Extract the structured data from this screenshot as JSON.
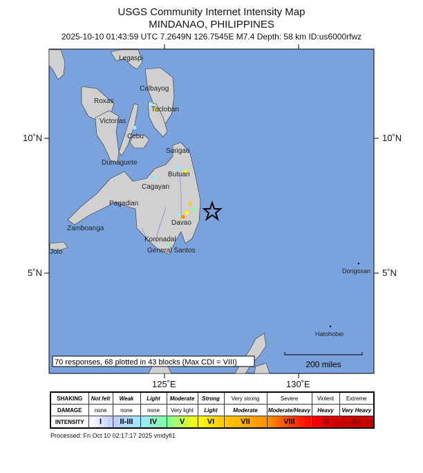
{
  "header": {
    "title": "USGS Community Internet Intensity Map",
    "region": "MINDANAO, PHILIPPINES",
    "event_info": "2025-10-10 01:43:59 UTC 7.2649N 126.7545E M7.4 Depth: 58 km ID:us6000rfwz"
  },
  "map": {
    "ocean_color": "#7aa2dd",
    "land_color": "#d0d0d0",
    "river_color": "#7f88e0",
    "lat_labels": [
      "10˚N",
      "5˚N"
    ],
    "lon_labels": [
      "125˚E",
      "130˚E"
    ],
    "cities": [
      "Legaspi",
      "Calbayog",
      "Roxas",
      "Tacloban",
      "Victorias",
      "Cebu",
      "Surigao",
      "Dumaguete",
      "Butuan",
      "Cagayan",
      "Pagadian",
      "Davao",
      "Zamboanga",
      "Koronadal",
      "General Santos",
      "Jolo",
      "Dongosan",
      "Hatohobei"
    ],
    "epicenter_icon": "star-icon",
    "summary": "70 responses, 68 plotted in 43 blocks (Max CDI = VIII)",
    "scale_label": "200 miles"
  },
  "legend": {
    "row_labels": [
      "SHAKING",
      "DAMAGE",
      "INTENSITY"
    ],
    "shaking": [
      "Not felt",
      "Weak",
      "Light",
      "Moderate",
      "Strong",
      "Very strong",
      "Severe",
      "Violent",
      "Extreme"
    ],
    "damage": [
      "none",
      "none",
      "none",
      "Very light",
      "Light",
      "Moderate",
      "Moderate/Heavy",
      "Heavy",
      "Very Heavy"
    ],
    "intensity": [
      "I",
      "II-III",
      "IV",
      "V",
      "VI",
      "VII",
      "VIII",
      "IX",
      "X+"
    ],
    "colors": [
      "#ffffff",
      "#bfccff",
      "#a0e6ff",
      "#80ffa0",
      "#ffff00",
      "#ffc800",
      "#ff9100",
      "#ff0000",
      "#c80000"
    ]
  },
  "footer": {
    "processed": "Processed: Fri Oct 10 02:17:17 2025 vmdyfi1"
  }
}
